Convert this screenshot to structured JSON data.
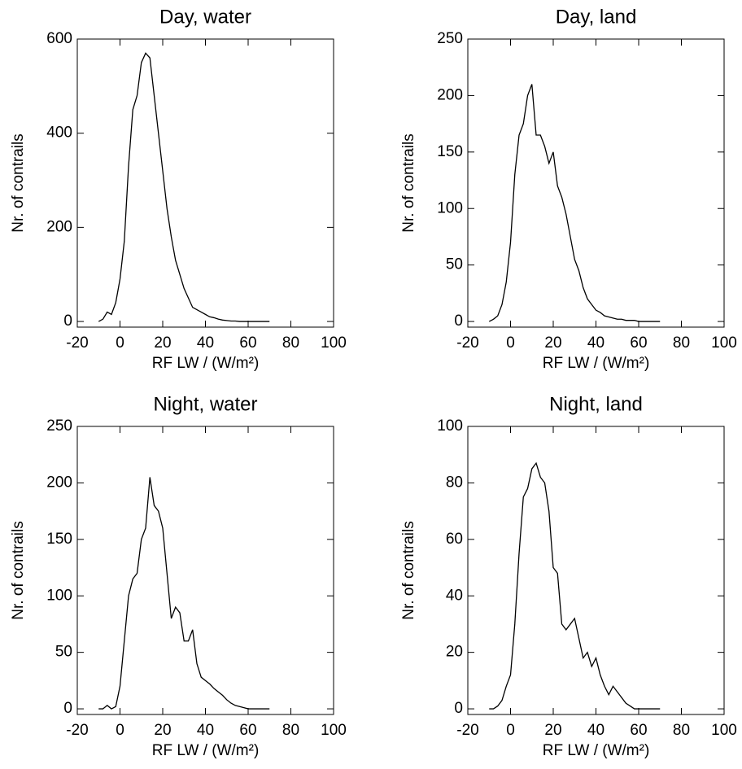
{
  "chart_data": [
    {
      "type": "line",
      "title": "Day, water",
      "xlabel": "RF LW / (W/m²)",
      "ylabel": "Nr. of contrails",
      "color": "#000000",
      "x": [
        -10,
        -8,
        -6,
        -4,
        -2,
        0,
        2,
        4,
        6,
        8,
        10,
        12,
        14,
        16,
        18,
        20,
        22,
        24,
        26,
        28,
        30,
        32,
        34,
        36,
        38,
        40,
        42,
        44,
        46,
        48,
        50,
        52,
        54,
        56,
        58,
        60,
        62,
        64,
        66,
        68,
        70
      ],
      "values": [
        0,
        5,
        20,
        15,
        40,
        90,
        170,
        330,
        450,
        480,
        550,
        570,
        560,
        480,
        400,
        320,
        240,
        180,
        130,
        100,
        70,
        50,
        30,
        25,
        20,
        15,
        10,
        8,
        5,
        3,
        2,
        1,
        1,
        0,
        0,
        0,
        0,
        0,
        0,
        0,
        0
      ],
      "xlim": [
        -20,
        100
      ],
      "xticks": [
        -20,
        0,
        20,
        40,
        60,
        80,
        100
      ],
      "ylim": [
        -12,
        600
      ],
      "yticks": [
        0,
        200,
        400,
        600
      ]
    },
    {
      "type": "line",
      "title": "Day, land",
      "xlabel": "RF LW / (W/m²)",
      "ylabel": "Nr. of contrails",
      "color": "#000000",
      "x": [
        -10,
        -8,
        -6,
        -4,
        -2,
        0,
        2,
        4,
        6,
        8,
        10,
        12,
        14,
        16,
        18,
        20,
        22,
        24,
        26,
        28,
        30,
        32,
        34,
        36,
        38,
        40,
        42,
        44,
        46,
        48,
        50,
        52,
        54,
        56,
        58,
        60,
        62,
        64,
        66,
        68,
        70
      ],
      "values": [
        0,
        2,
        5,
        15,
        35,
        70,
        130,
        165,
        175,
        200,
        210,
        165,
        165,
        155,
        140,
        150,
        120,
        110,
        95,
        75,
        55,
        45,
        30,
        20,
        15,
        10,
        8,
        5,
        4,
        3,
        2,
        2,
        1,
        1,
        1,
        0,
        0,
        0,
        0,
        0,
        0
      ],
      "xlim": [
        -20,
        100
      ],
      "xticks": [
        -20,
        0,
        20,
        40,
        60,
        80,
        100
      ],
      "ylim": [
        -5,
        250
      ],
      "yticks": [
        0,
        50,
        100,
        150,
        200,
        250
      ]
    },
    {
      "type": "line",
      "title": "Night, water",
      "xlabel": "RF LW / (W/m²)",
      "ylabel": "Nr. of contrails",
      "color": "#000000",
      "x": [
        -10,
        -8,
        -6,
        -4,
        -2,
        0,
        2,
        4,
        6,
        8,
        10,
        12,
        14,
        16,
        18,
        20,
        22,
        24,
        26,
        28,
        30,
        32,
        34,
        36,
        38,
        40,
        42,
        44,
        46,
        48,
        50,
        52,
        54,
        56,
        58,
        60,
        62,
        64,
        66,
        68,
        70
      ],
      "values": [
        0,
        0,
        3,
        0,
        2,
        20,
        60,
        100,
        115,
        120,
        150,
        160,
        205,
        180,
        175,
        160,
        120,
        80,
        90,
        85,
        60,
        60,
        70,
        40,
        28,
        25,
        22,
        18,
        15,
        12,
        8,
        5,
        3,
        2,
        1,
        0,
        0,
        0,
        0,
        0,
        0
      ],
      "xlim": [
        -20,
        100
      ],
      "xticks": [
        -20,
        0,
        20,
        40,
        60,
        80,
        100
      ],
      "ylim": [
        -5,
        250
      ],
      "yticks": [
        0,
        50,
        100,
        150,
        200,
        250
      ]
    },
    {
      "type": "line",
      "title": "Night, land",
      "xlabel": "RF LW / (W/m²)",
      "ylabel": "Nr. of contrails",
      "color": "#000000",
      "x": [
        -10,
        -8,
        -6,
        -4,
        -2,
        0,
        2,
        4,
        6,
        8,
        10,
        12,
        14,
        16,
        18,
        20,
        22,
        24,
        26,
        28,
        30,
        32,
        34,
        36,
        38,
        40,
        42,
        44,
        46,
        48,
        50,
        52,
        54,
        56,
        58,
        60,
        62,
        64,
        66,
        68,
        70
      ],
      "values": [
        0,
        0,
        1,
        3,
        8,
        12,
        30,
        55,
        75,
        78,
        85,
        87,
        82,
        80,
        70,
        50,
        48,
        30,
        28,
        30,
        32,
        25,
        18,
        20,
        15,
        18,
        12,
        8,
        5,
        8,
        6,
        4,
        2,
        1,
        0,
        0,
        0,
        0,
        0,
        0,
        0
      ],
      "xlim": [
        -20,
        100
      ],
      "xticks": [
        -20,
        0,
        20,
        40,
        60,
        80,
        100
      ],
      "ylim": [
        -2,
        100
      ],
      "yticks": [
        0,
        20,
        40,
        60,
        80,
        100
      ]
    }
  ]
}
